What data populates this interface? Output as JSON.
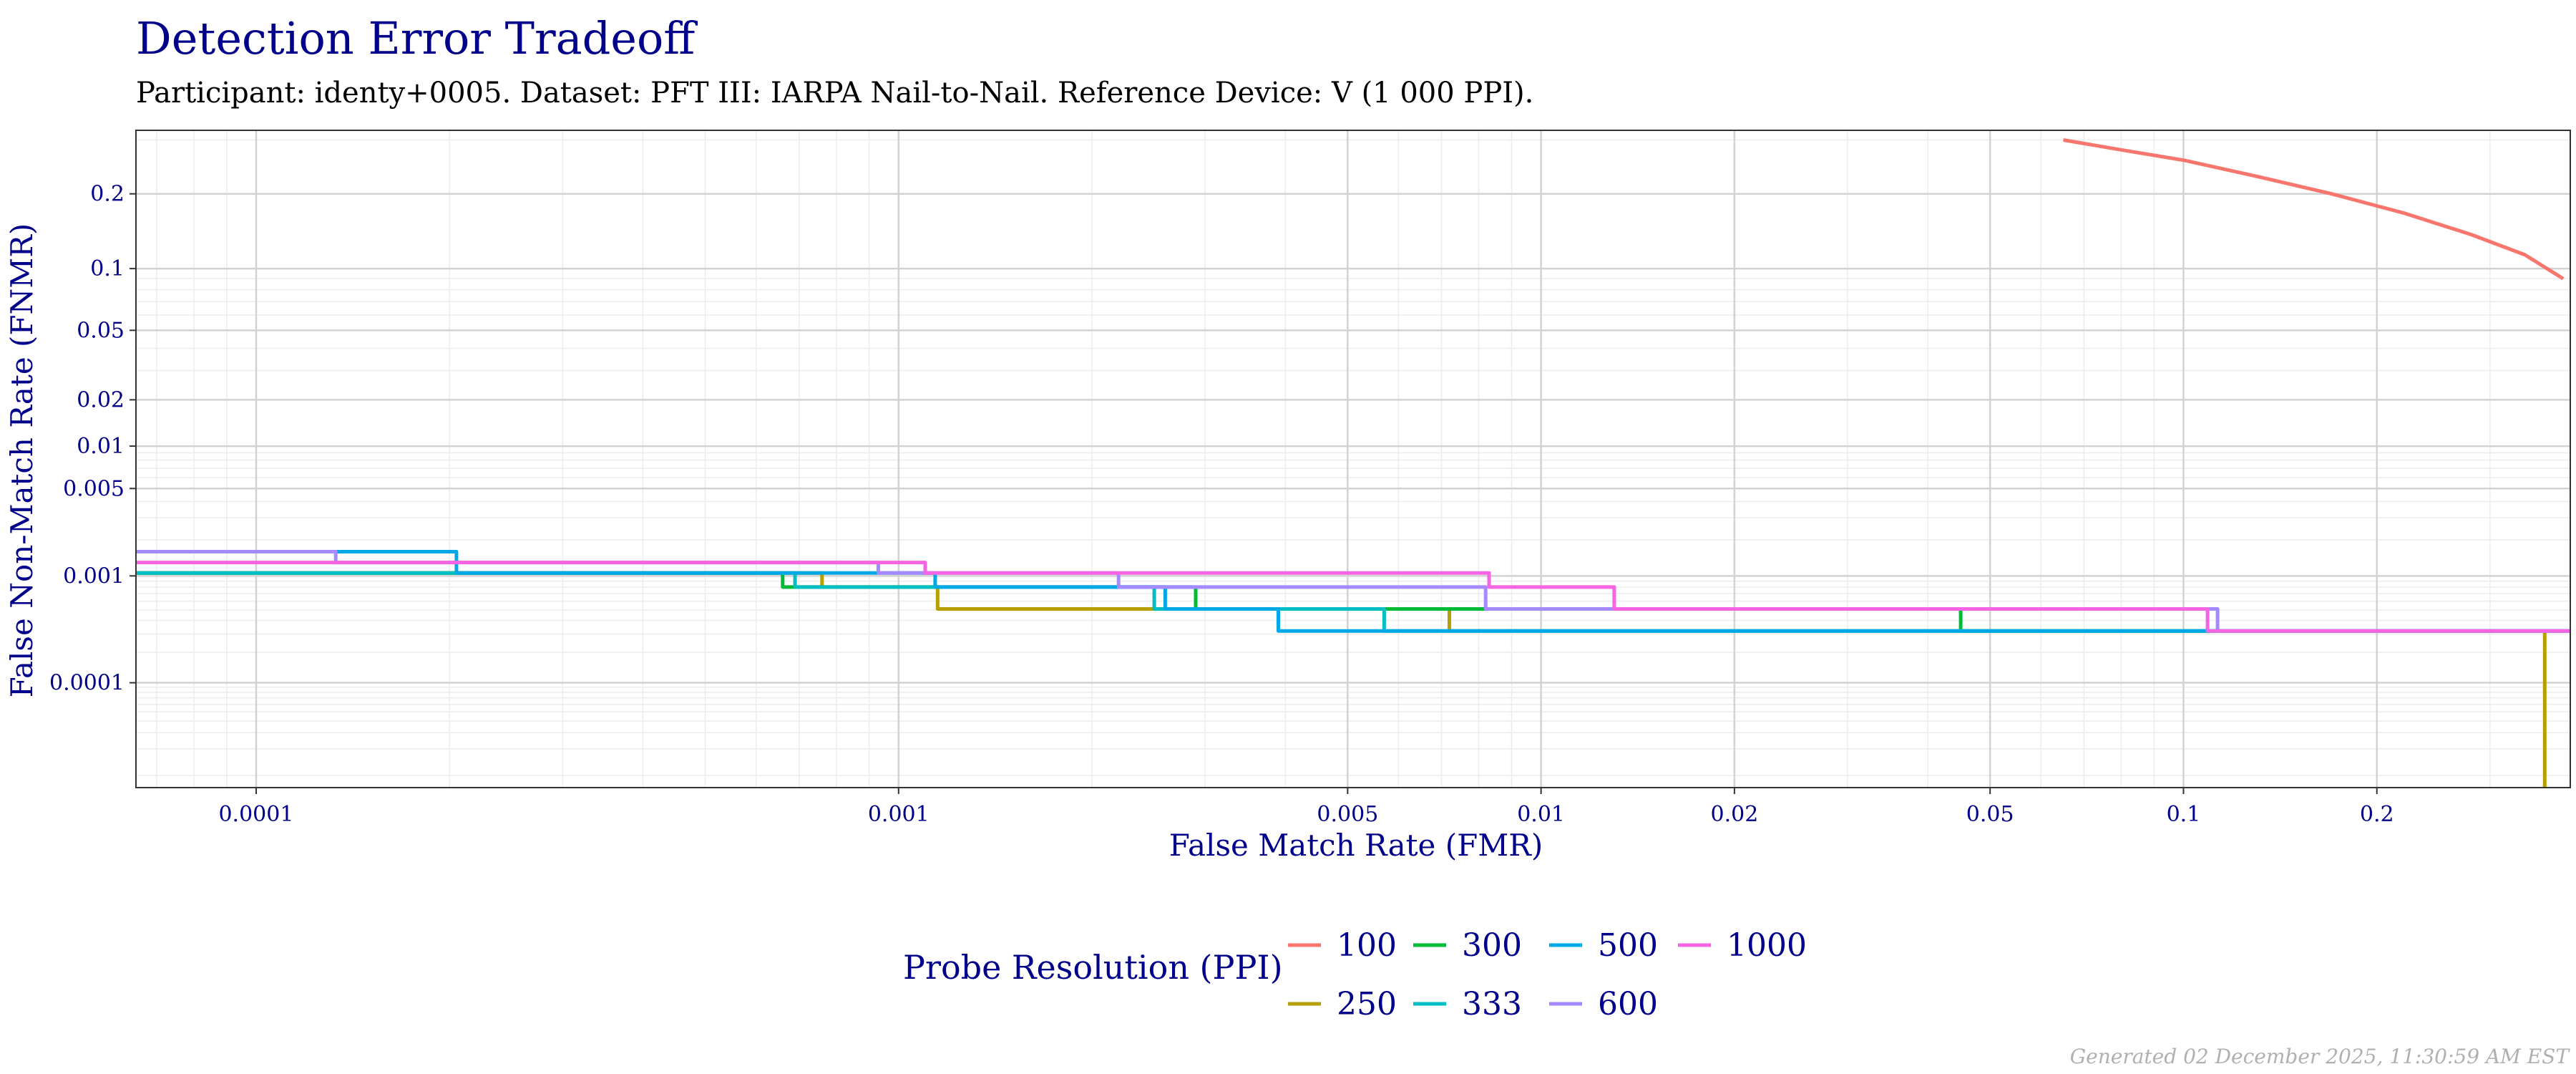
{
  "title": "Detection Error Tradeoff",
  "subtitle": "Participant: identy+0005. Dataset: PFT III: IARPA Nail-to-Nail. Reference Device: V (1 000 PPI).",
  "footer": "Generated 02 December 2025, 11:30:59 AM EST",
  "chart_data": {
    "type": "line",
    "title": "Detection Error Tradeoff",
    "xlabel": "False Match Rate (FMR)",
    "ylabel": "False Non-Match Rate (FNMR)",
    "x_scale": "log",
    "y_scale": "probit",
    "xlim": [
      6.5e-05,
      0.4
    ],
    "ylim": [
      7.25e-06,
      0.32
    ],
    "x_ticks": [
      {
        "value": 0.0001,
        "label": "0.0001"
      },
      {
        "value": 0.001,
        "label": "0.001"
      },
      {
        "value": 0.005,
        "label": "0.005"
      },
      {
        "value": 0.01,
        "label": "0.01"
      },
      {
        "value": 0.02,
        "label": "0.02"
      },
      {
        "value": 0.05,
        "label": "0.05"
      },
      {
        "value": 0.1,
        "label": "0.1"
      },
      {
        "value": 0.2,
        "label": "0.2"
      }
    ],
    "y_ticks": [
      {
        "value": 0.2,
        "label": "0.2"
      },
      {
        "value": 0.1,
        "label": "0.1"
      },
      {
        "value": 0.05,
        "label": "0.05"
      },
      {
        "value": 0.02,
        "label": "0.02"
      },
      {
        "value": 0.01,
        "label": "0.01"
      },
      {
        "value": 0.005,
        "label": "0.005"
      },
      {
        "value": 0.001,
        "label": "0.001"
      },
      {
        "value": 0.0001,
        "label": "0.0001"
      }
    ],
    "grid": true,
    "legend": {
      "title": "Probe Resolution (PPI)",
      "position": "bottom"
    },
    "series": [
      {
        "name": "100",
        "color": "#F8766D",
        "points": [
          [
            0.065,
            0.3
          ],
          [
            0.08,
            0.28
          ],
          [
            0.1,
            0.26
          ],
          [
            0.13,
            0.23
          ],
          [
            0.17,
            0.2
          ],
          [
            0.22,
            0.17
          ],
          [
            0.28,
            0.14
          ],
          [
            0.34,
            0.115
          ],
          [
            0.39,
            0.09
          ]
        ]
      },
      {
        "name": "250",
        "color": "#B79F00",
        "points": [
          [
            6.5e-05,
            0.00106
          ],
          [
            0.00076,
            0.00106
          ],
          [
            0.00076,
            0.0008
          ],
          [
            0.00115,
            0.0008
          ],
          [
            0.00115,
            0.00051
          ],
          [
            0.0072,
            0.00051
          ],
          [
            0.0072,
            0.00032
          ],
          [
            0.365,
            0.00032
          ],
          [
            0.365,
            7.25e-06
          ]
        ]
      },
      {
        "name": "300",
        "color": "#00BA38",
        "points": [
          [
            6.5e-05,
            0.00106
          ],
          [
            0.00066,
            0.00106
          ],
          [
            0.00066,
            0.0008
          ],
          [
            0.0029,
            0.0008
          ],
          [
            0.0029,
            0.00051
          ],
          [
            0.045,
            0.00051
          ],
          [
            0.045,
            0.00032
          ],
          [
            0.4,
            0.00032
          ]
        ]
      },
      {
        "name": "333",
        "color": "#00BFC4",
        "points": [
          [
            6.5e-05,
            0.00106
          ],
          [
            0.00069,
            0.00106
          ],
          [
            0.00069,
            0.0008
          ],
          [
            0.0025,
            0.0008
          ],
          [
            0.0025,
            0.00051
          ],
          [
            0.0057,
            0.00051
          ],
          [
            0.0057,
            0.00032
          ],
          [
            0.4,
            0.00032
          ]
        ]
      },
      {
        "name": "500",
        "color": "#00A9E6",
        "points": [
          [
            6.5e-05,
            0.0016
          ],
          [
            0.000205,
            0.0016
          ],
          [
            0.000205,
            0.00106
          ],
          [
            0.00114,
            0.00106
          ],
          [
            0.00114,
            0.0008
          ],
          [
            0.0026,
            0.0008
          ],
          [
            0.0026,
            0.00051
          ],
          [
            0.0039,
            0.00051
          ],
          [
            0.0039,
            0.00032
          ],
          [
            0.4,
            0.00032
          ]
        ]
      },
      {
        "name": "600",
        "color": "#A58AFF",
        "points": [
          [
            6.5e-05,
            0.0016
          ],
          [
            0.000133,
            0.0016
          ],
          [
            0.000133,
            0.0013
          ],
          [
            0.00093,
            0.0013
          ],
          [
            0.00093,
            0.00106
          ],
          [
            0.0022,
            0.00106
          ],
          [
            0.0022,
            0.0008
          ],
          [
            0.0082,
            0.0008
          ],
          [
            0.0082,
            0.00051
          ],
          [
            0.113,
            0.00051
          ],
          [
            0.113,
            0.00032
          ],
          [
            0.4,
            0.00032
          ]
        ]
      },
      {
        "name": "1000",
        "color": "#F564E3",
        "points": [
          [
            6.5e-05,
            0.0013
          ],
          [
            0.0011,
            0.0013
          ],
          [
            0.0011,
            0.00106
          ],
          [
            0.0083,
            0.00106
          ],
          [
            0.0083,
            0.0008
          ],
          [
            0.013,
            0.0008
          ],
          [
            0.013,
            0.00051
          ],
          [
            0.109,
            0.00051
          ],
          [
            0.109,
            0.00032
          ],
          [
            0.4,
            0.00032
          ]
        ]
      }
    ]
  }
}
